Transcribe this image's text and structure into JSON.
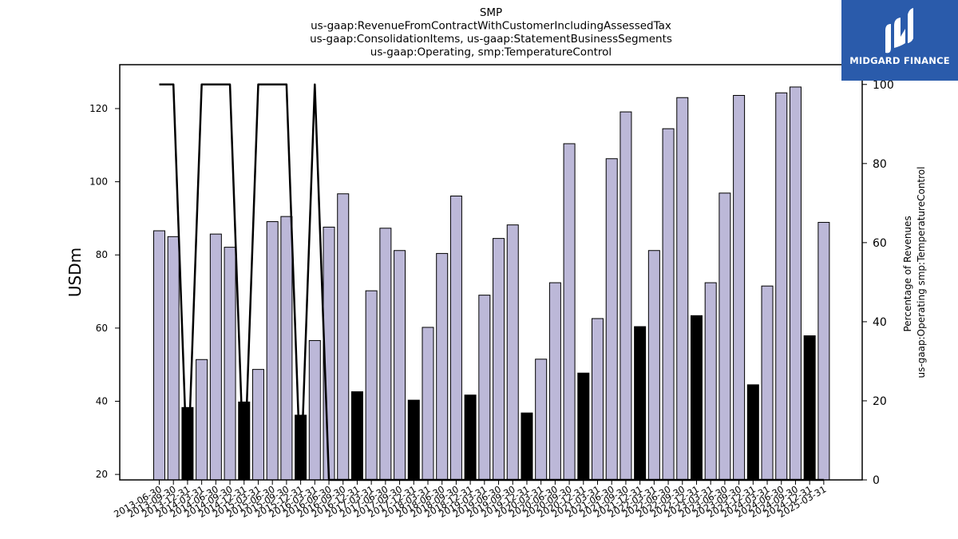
{
  "title_lines": [
    "SMP",
    "us-gaap:RevenueFromContractWithCustomerIncludingAssessedTax",
    "us-gaap:ConsolidationItems, us-gaap:StatementBusinessSegments",
    "us-gaap:Operating, smp:TemperatureControl"
  ],
  "logo": {
    "text": "MIDGARD FINANCE",
    "bg_color": "#2a5bab"
  },
  "colors": {
    "bar": "#bcb8d8",
    "bar_q4": "#000000",
    "line": "#000000"
  },
  "chart_data": {
    "type": "bar",
    "title": "SMP us-gaap:RevenueFromContractWithCustomerIncludingAssessedTax us-gaap:ConsolidationItems, us-gaap:StatementBusinessSegments us-gaap:Operating, smp:TemperatureControl",
    "ylabel": "USDm",
    "y2label_lines": [
      "Percentage of Revenues",
      "us-gaap:Operating smp:TemperatureControl"
    ],
    "ylim": [
      18.5,
      132
    ],
    "y2lim": [
      0,
      105
    ],
    "yticks": [
      20,
      40,
      60,
      80,
      100,
      120
    ],
    "y2ticks": [
      0,
      20,
      40,
      60,
      80,
      100
    ],
    "grid": false,
    "categories": [
      "2013-06-30",
      "2013-09-30",
      "2013-12-31",
      "2014-03-31",
      "2014-06-30",
      "2014-09-30",
      "2014-12-31",
      "2015-03-31",
      "2015-06-30",
      "2015-09-30",
      "2015-12-31",
      "2016-03-31",
      "2016-06-30",
      "2016-09-30",
      "2016-12-31",
      "2017-03-31",
      "2017-06-30",
      "2017-09-30",
      "2017-12-31",
      "2018-03-31",
      "2018-06-30",
      "2018-09-30",
      "2018-12-31",
      "2019-03-31",
      "2019-06-30",
      "2019-09-30",
      "2019-12-31",
      "2020-03-31",
      "2020-06-30",
      "2020-09-30",
      "2020-12-31",
      "2021-03-31",
      "2021-06-30",
      "2021-09-30",
      "2021-12-31",
      "2022-03-31",
      "2022-06-30",
      "2022-09-30",
      "2022-12-31",
      "2023-03-31",
      "2023-06-30",
      "2023-09-30",
      "2023-12-31",
      "2024-03-31",
      "2024-06-30",
      "2024-09-30",
      "2024-12-31",
      "2025-03-31"
    ],
    "values": [
      86.6,
      85.0,
      38.3,
      51.4,
      85.7,
      82.1,
      39.8,
      48.7,
      89.1,
      90.5,
      36.2,
      56.6,
      87.6,
      96.7,
      42.6,
      70.2,
      87.3,
      81.2,
      40.3,
      60.2,
      80.4,
      96.1,
      41.7,
      69.0,
      84.5,
      88.2,
      36.8,
      51.5,
      72.4,
      110.4,
      47.7,
      62.6,
      106.3,
      119.1,
      60.4,
      81.2,
      114.5,
      123.0,
      63.4,
      72.4,
      96.9,
      123.6,
      44.5,
      71.5,
      124.3,
      125.9,
      57.9,
      88.9
    ],
    "q4_highlight_indices": [
      2,
      6,
      10,
      14,
      18,
      22,
      26,
      30,
      34,
      38,
      42,
      46
    ],
    "line_series": {
      "axis": "right",
      "values": [
        100,
        100,
        0,
        100,
        100,
        100,
        0,
        100,
        100,
        100,
        0,
        100,
        0,
        0,
        0,
        0,
        0,
        0,
        0,
        0,
        0,
        0,
        0,
        0,
        0,
        0,
        0,
        0,
        0,
        0,
        0,
        0,
        0,
        0,
        0,
        0,
        0,
        0,
        0,
        0,
        0,
        0,
        0,
        0,
        0,
        0,
        0,
        0
      ]
    }
  }
}
